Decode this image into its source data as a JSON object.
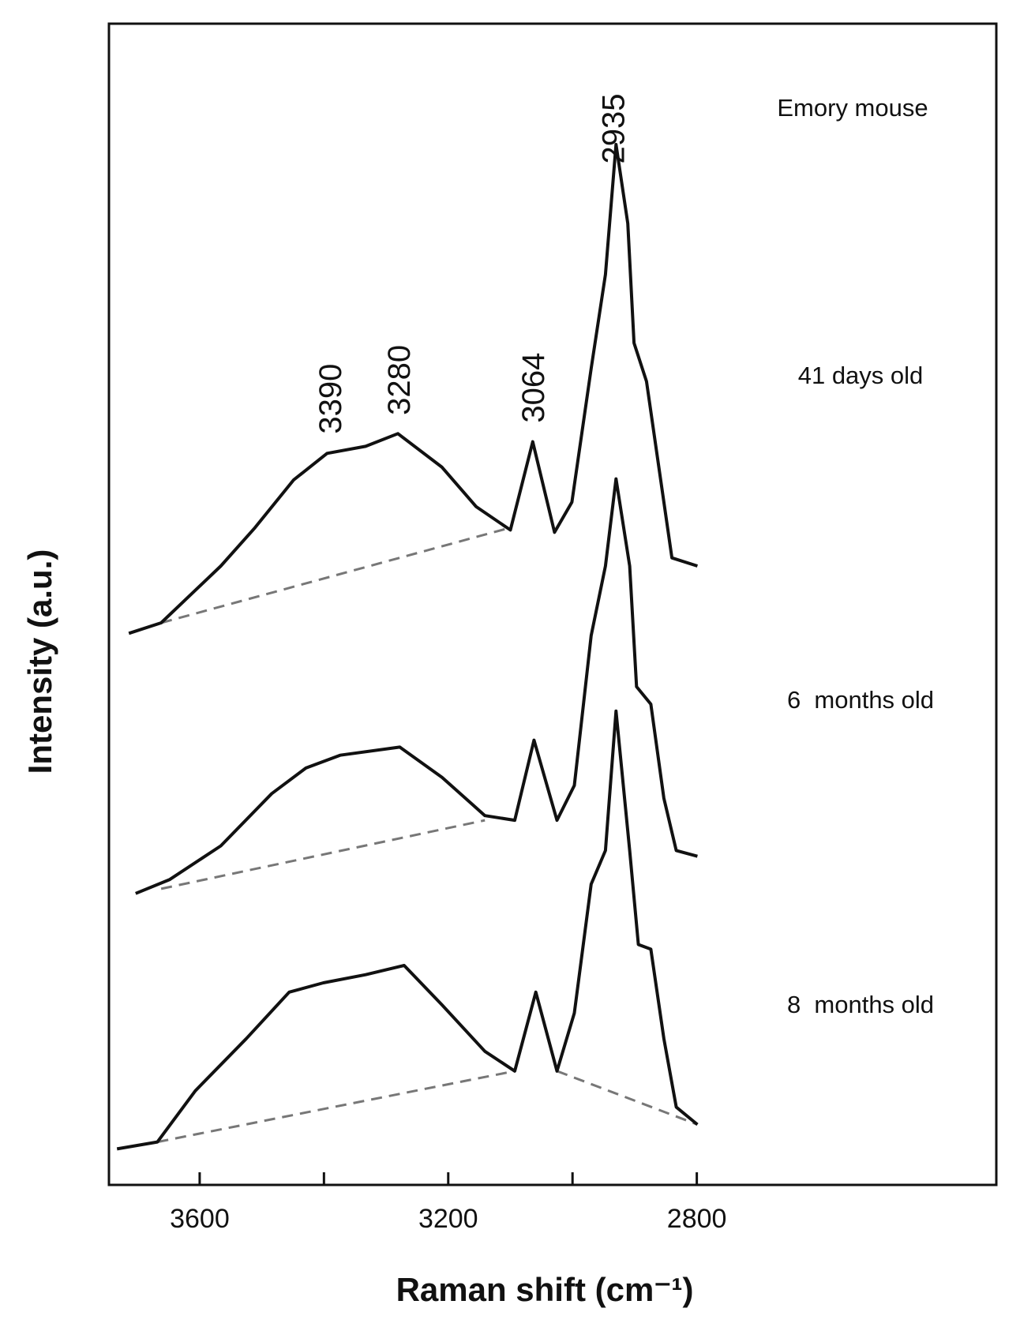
{
  "chart_data": {
    "type": "line",
    "label": "Emory mouse",
    "x_label": "Raman shift (cm⁻¹)",
    "y_label": "Intensity (a.u.)",
    "xlim": [
      3746,
      2318
    ],
    "ylim": [
      0,
      100
    ],
    "xticks": [
      3600,
      3200,
      2800
    ],
    "xticks_minor": [
      3400,
      3000
    ],
    "peak_labels": [
      3390,
      3280,
      3064,
      2935
    ],
    "color": "#111111",
    "baseline_color": "#777777",
    "series": [
      {
        "name": "41 days old",
        "x": [
          3714,
          3662,
          3566,
          3511,
          3449,
          3395,
          3333,
          3281,
          3210,
          3155,
          3100,
          3064,
          3029,
          3001,
          2970,
          2947,
          2930,
          2911,
          2901,
          2881,
          2860,
          2840,
          2799
        ],
        "values": [
          47.5,
          48.4,
          53.3,
          56.6,
          60.7,
          63.0,
          63.6,
          64.7,
          61.8,
          58.4,
          56.4,
          64.0,
          56.2,
          58.8,
          70.3,
          78.4,
          89.6,
          82.8,
          72.5,
          69.2,
          61.4,
          54.0,
          53.3
        ],
        "baselines": [
          {
            "x": [
              3662,
              3100
            ],
            "values": [
              48.4,
              56.6
            ]
          }
        ]
      },
      {
        "name": "6  months old",
        "x": [
          3703,
          3648,
          3566,
          3484,
          3429,
          3374,
          3278,
          3210,
          3141,
          3093,
          3062,
          3025,
          2997,
          2970,
          2947,
          2930,
          2908,
          2897,
          2874,
          2853,
          2833,
          2799
        ],
        "values": [
          25.1,
          26.3,
          29.2,
          33.7,
          35.9,
          37.0,
          37.7,
          35.1,
          31.8,
          31.4,
          38.3,
          31.4,
          34.4,
          47.3,
          53.3,
          60.8,
          53.3,
          42.9,
          41.4,
          33.3,
          28.8,
          28.3
        ],
        "baselines": [
          {
            "x": [
              3662,
              3141
            ],
            "values": [
              25.5,
              31.4
            ]
          }
        ]
      },
      {
        "name": "8  months old",
        "x": [
          3733,
          3668,
          3607,
          3525,
          3456,
          3401,
          3333,
          3271,
          3210,
          3141,
          3093,
          3059,
          3025,
          2997,
          2970,
          2947,
          2930,
          2908,
          2894,
          2874,
          2853,
          2833,
          2799
        ],
        "values": [
          3.1,
          3.7,
          8.1,
          12.6,
          16.6,
          17.4,
          18.1,
          18.9,
          15.5,
          11.5,
          9.8,
          16.6,
          9.8,
          14.8,
          25.9,
          28.8,
          40.8,
          28.8,
          20.7,
          20.3,
          12.6,
          6.7,
          5.2
        ],
        "baselines": [
          {
            "x": [
              3668,
              3093
            ],
            "values": [
              3.7,
              9.8
            ]
          },
          {
            "x": [
              3025,
              2799
            ],
            "values": [
              9.8,
              5.2
            ]
          }
        ]
      }
    ]
  }
}
